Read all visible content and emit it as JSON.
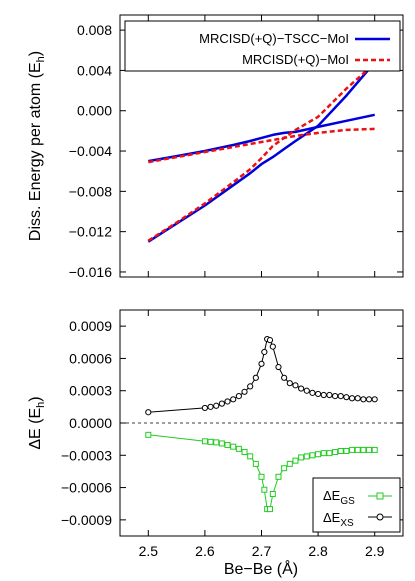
{
  "chart_data": [
    {
      "type": "line",
      "ylabel_main": "Diss. Energy per atom (E",
      "ylabel_sub": "h",
      "ylabel_close": ")",
      "xlim": [
        2.45,
        2.95
      ],
      "ylim": [
        -0.0165,
        0.0095
      ],
      "xticks": [
        2.5,
        2.6,
        2.7,
        2.8,
        2.9
      ],
      "yticks": [
        -0.016,
        -0.012,
        -0.008,
        -0.004,
        0.0,
        0.004,
        0.008
      ],
      "ytick_labels": [
        "−0.016",
        "−0.012",
        "−0.008",
        "−0.004",
        "0.000",
        "0.004",
        "0.008"
      ],
      "legend_position": "top-right",
      "series": [
        {
          "name": "MRCISD(+Q)−TSCC−MoI",
          "color": "#0000dd",
          "style": "solid",
          "branches": [
            {
              "x": [
                2.5,
                2.55,
                2.6,
                2.65,
                2.68,
                2.7,
                2.72,
                2.74,
                2.76,
                2.8,
                2.85,
                2.9
              ],
              "y": [
                -0.005,
                -0.0045,
                -0.004,
                -0.0034,
                -0.003,
                -0.0027,
                -0.0024,
                -0.0022,
                -0.0021,
                -0.0016,
                -0.001,
                -0.0004
              ]
            },
            {
              "x": [
                2.5,
                2.55,
                2.6,
                2.65,
                2.68,
                2.7,
                2.72,
                2.74,
                2.76,
                2.8,
                2.85,
                2.9
              ],
              "y": [
                -0.013,
                -0.0112,
                -0.0094,
                -0.0074,
                -0.0062,
                -0.0053,
                -0.0046,
                -0.0038,
                -0.003,
                -0.0015,
                0.0015,
                0.0048
              ]
            }
          ]
        },
        {
          "name": "MRCISD(+Q)−MoI",
          "color": "#ee1111",
          "style": "dashed",
          "branches": [
            {
              "x": [
                2.5,
                2.55,
                2.6,
                2.65,
                2.68,
                2.7,
                2.71,
                2.72,
                2.74,
                2.76,
                2.8,
                2.85,
                2.9
              ],
              "y": [
                -0.0051,
                -0.0046,
                -0.0041,
                -0.0036,
                -0.0033,
                -0.0031,
                -0.003,
                -0.0029,
                -0.0027,
                -0.0025,
                -0.0022,
                -0.0019,
                -0.0018
              ]
            },
            {
              "x": [
                2.5,
                2.55,
                2.6,
                2.65,
                2.68,
                2.7,
                2.71,
                2.72,
                2.74,
                2.76,
                2.8,
                2.85,
                2.9
              ],
              "y": [
                -0.0129,
                -0.0111,
                -0.0092,
                -0.0071,
                -0.0058,
                -0.0047,
                -0.0041,
                -0.0035,
                -0.0027,
                -0.0019,
                -0.0006,
                0.0022,
                0.0047
              ]
            }
          ]
        }
      ]
    },
    {
      "type": "line",
      "xlabel": "Be−Be (Å)",
      "ylabel_main": "ΔE (E",
      "ylabel_sub": "h",
      "ylabel_close": ")",
      "xlim": [
        2.45,
        2.95
      ],
      "ylim": [
        -0.00105,
        0.00105
      ],
      "xticks": [
        2.5,
        2.6,
        2.7,
        2.8,
        2.9
      ],
      "xtick_labels": [
        "2.5",
        "2.6",
        "2.7",
        "2.8",
        "2.9"
      ],
      "yticks": [
        -0.0009,
        -0.0006,
        -0.0003,
        0.0,
        0.0003,
        0.0006,
        0.0009
      ],
      "ytick_labels": [
        "−0.0009",
        "−0.0006",
        "−0.0003",
        "0.0000",
        "0.0003",
        "0.0006",
        "0.0009"
      ],
      "zero_line": true,
      "legend_position": "bottom-right",
      "series": [
        {
          "name": "ΔE",
          "name_sub": "GS",
          "color": "#22cc22",
          "marker": "square",
          "x": [
            2.5,
            2.6,
            2.61,
            2.62,
            2.63,
            2.64,
            2.65,
            2.66,
            2.67,
            2.68,
            2.69,
            2.7,
            2.705,
            2.71,
            2.715,
            2.72,
            2.73,
            2.74,
            2.75,
            2.76,
            2.77,
            2.78,
            2.79,
            2.8,
            2.81,
            2.82,
            2.83,
            2.84,
            2.85,
            2.86,
            2.87,
            2.88,
            2.89,
            2.9
          ],
          "y": [
            -0.00011,
            -0.00017,
            -0.000175,
            -0.00018,
            -0.00019,
            -0.000205,
            -0.00022,
            -0.00024,
            -0.00027,
            -0.00031,
            -0.00038,
            -0.0005,
            -0.00062,
            -0.0008,
            -0.0008,
            -0.00066,
            -0.0005,
            -0.00042,
            -0.00038,
            -0.00035,
            -0.00032,
            -0.00031,
            -0.0003,
            -0.00029,
            -0.00028,
            -0.00028,
            -0.00027,
            -0.00026,
            -0.00026,
            -0.00025,
            -0.00025,
            -0.00025,
            -0.00025,
            -0.00025
          ]
        },
        {
          "name": "ΔE",
          "name_sub": "XS",
          "color": "#000000",
          "marker": "circle",
          "x": [
            2.5,
            2.6,
            2.61,
            2.62,
            2.63,
            2.64,
            2.65,
            2.66,
            2.67,
            2.68,
            2.69,
            2.7,
            2.705,
            2.71,
            2.715,
            2.72,
            2.73,
            2.74,
            2.75,
            2.76,
            2.77,
            2.78,
            2.79,
            2.8,
            2.81,
            2.82,
            2.83,
            2.84,
            2.85,
            2.86,
            2.87,
            2.88,
            2.89,
            2.9
          ],
          "y": [
            0.0001,
            0.00014,
            0.00015,
            0.00016,
            0.00018,
            0.0002,
            0.00022,
            0.00025,
            0.00029,
            0.00034,
            0.00042,
            0.00055,
            0.00066,
            0.00078,
            0.00077,
            0.00071,
            0.00052,
            0.00042,
            0.00037,
            0.00035,
            0.00032,
            0.0003,
            0.00028,
            0.00027,
            0.00026,
            0.00026,
            0.00025,
            0.00025,
            0.00024,
            0.00023,
            0.00023,
            0.00022,
            0.00022,
            0.00022
          ]
        }
      ]
    }
  ]
}
